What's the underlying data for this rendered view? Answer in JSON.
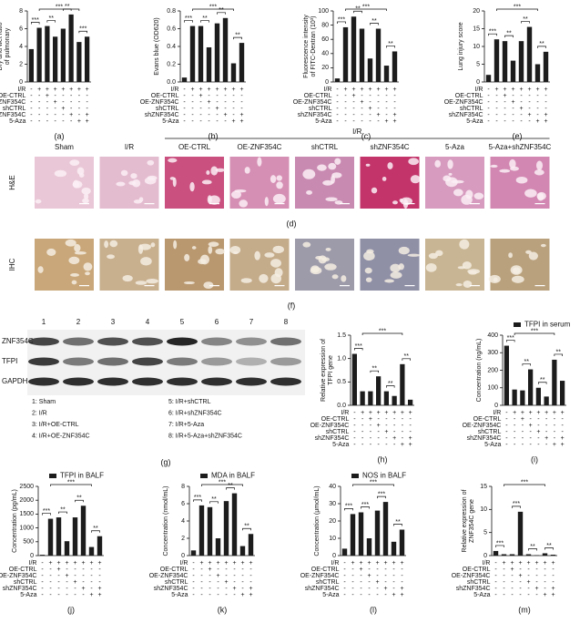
{
  "chart_data": [
    {
      "type": "bar",
      "panel_label": "(a)",
      "ylabel": [
        "Dry and wet ratio",
        "of pulmonary"
      ],
      "ylim": [
        0,
        8
      ],
      "yticks": [
        0,
        2,
        4,
        6,
        8
      ],
      "series": [
        {
          "color": "#1c1c1c",
          "values": [
            3.7,
            6.1,
            6.3,
            5.1,
            6.0,
            7.6,
            4.5,
            5.1
          ]
        }
      ],
      "annotations": [
        {
          "text": "***",
          "bars": [
            0,
            1
          ]
        },
        {
          "text": "**",
          "bars": [
            2,
            3
          ]
        },
        {
          "text": "**",
          "bars": [
            4,
            5
          ]
        },
        {
          "text": "***",
          "bars": [
            6,
            7
          ]
        },
        {
          "text": "***",
          "bars": [
            1,
            6
          ]
        }
      ]
    },
    {
      "type": "bar",
      "panel_label": "(b)",
      "ylabel": [
        "Evans blue (OD620)"
      ],
      "ylim": [
        0,
        0.8
      ],
      "yticks": [
        {
          "value": 0,
          "label": "0.0"
        },
        0.2,
        0.4,
        0.6,
        0.8
      ],
      "series": [
        {
          "color": "#1c1c1c",
          "values": [
            0.05,
            0.63,
            0.63,
            0.39,
            0.66,
            0.72,
            0.21,
            0.44
          ]
        }
      ],
      "annotations": [
        {
          "text": "***",
          "bars": [
            0,
            1
          ]
        },
        {
          "text": "**",
          "bars": [
            2,
            3
          ]
        },
        {
          "text": "**",
          "bars": [
            4,
            5
          ]
        },
        {
          "text": "**",
          "bars": [
            6,
            7
          ]
        },
        {
          "text": "***",
          "bars": [
            1,
            6
          ]
        }
      ]
    },
    {
      "type": "bar",
      "panel_label": "(c)",
      "ylabel": [
        "Fluorescence intensity",
        "of FITC-Dextran (10³)"
      ],
      "ylim": [
        0,
        100
      ],
      "yticks": [
        0,
        20,
        40,
        60,
        80,
        100
      ],
      "series": [
        {
          "color": "#1c1c1c",
          "values": [
            5,
            77,
            92,
            75,
            33,
            75,
            23,
            43
          ]
        }
      ],
      "annotations": [
        {
          "text": "***",
          "bars": [
            0,
            1
          ]
        },
        {
          "text": "**",
          "bars": [
            2,
            3
          ]
        },
        {
          "text": "**",
          "bars": [
            4,
            5
          ]
        },
        {
          "text": "**",
          "bars": [
            6,
            7
          ]
        },
        {
          "text": "***",
          "bars": [
            1,
            6
          ]
        }
      ]
    },
    {
      "type": "bar",
      "panel_label": "(e)",
      "ylabel": [
        "Lung injury score"
      ],
      "ylim": [
        0,
        20
      ],
      "yticks": [
        0,
        5,
        10,
        15,
        20
      ],
      "series": [
        {
          "color": "#1c1c1c",
          "values": [
            2,
            12,
            11.5,
            6,
            11.5,
            15.5,
            5,
            8.5
          ]
        }
      ],
      "annotations": [
        {
          "text": "***",
          "bars": [
            0,
            1
          ]
        },
        {
          "text": "**",
          "bars": [
            2,
            3
          ]
        },
        {
          "text": "**",
          "bars": [
            4,
            5
          ]
        },
        {
          "text": "**",
          "bars": [
            6,
            7
          ]
        },
        {
          "text": "***",
          "bars": [
            1,
            6
          ]
        }
      ]
    },
    {
      "type": "bar",
      "panel_label": "(h)",
      "ylabel": [
        "Relative expression of",
        "TFPI gene"
      ],
      "ylim": [
        0,
        1.5
      ],
      "yticks": [
        {
          "value": 0,
          "label": "0.0"
        },
        0.5,
        {
          "value": 1,
          "label": "1.0"
        },
        1.5
      ],
      "series": [
        {
          "color": "#1c1c1c",
          "values": [
            1.1,
            0.3,
            0.3,
            0.62,
            0.3,
            0.2,
            0.88,
            0.12
          ]
        }
      ],
      "annotations": [
        {
          "text": "***",
          "bars": [
            0,
            1
          ]
        },
        {
          "text": "**",
          "bars": [
            2,
            3
          ]
        },
        {
          "text": "**",
          "bars": [
            4,
            5
          ]
        },
        {
          "text": "**",
          "bars": [
            6,
            7
          ]
        },
        {
          "text": "***",
          "bars": [
            1,
            6
          ]
        }
      ]
    },
    {
      "type": "bar",
      "panel_label": "(i)",
      "ylabel": [
        "Concentration (ng/mL)"
      ],
      "ylim": [
        0,
        400
      ],
      "yticks": [
        0,
        100,
        200,
        300,
        400
      ],
      "series": [
        {
          "name": "TFPI in serum",
          "color": "#1c1c1c",
          "values": [
            340,
            90,
            85,
            205,
            100,
            50,
            260,
            140
          ]
        }
      ],
      "annotations": [
        {
          "text": "***",
          "bars": [
            0,
            1
          ]
        },
        {
          "text": "**",
          "bars": [
            2,
            3
          ]
        },
        {
          "text": "**",
          "bars": [
            4,
            5
          ]
        },
        {
          "text": "**",
          "bars": [
            6,
            7
          ]
        },
        {
          "text": "***",
          "bars": [
            1,
            6
          ]
        }
      ]
    },
    {
      "type": "bar",
      "panel_label": "(j)",
      "ylabel": [
        "Concentration (pg/mL)"
      ],
      "ylim": [
        0,
        2500
      ],
      "yticks": [
        0,
        500,
        1000,
        1500,
        2000,
        2500
      ],
      "series": [
        {
          "name": "TFPI in BALF",
          "color": "#1c1c1c",
          "values": [
            30,
            1330,
            1380,
            520,
            1380,
            1800,
            310,
            700
          ]
        }
      ],
      "annotations": [
        {
          "text": "***",
          "bars": [
            0,
            1
          ]
        },
        {
          "text": "**",
          "bars": [
            2,
            3
          ]
        },
        {
          "text": "**",
          "bars": [
            4,
            5
          ]
        },
        {
          "text": "**",
          "bars": [
            6,
            7
          ]
        },
        {
          "text": "***",
          "bars": [
            1,
            6
          ]
        }
      ]
    },
    {
      "type": "bar",
      "panel_label": "(k)",
      "ylabel": [
        "Concentration (nmol/mL)"
      ],
      "ylim": [
        0,
        8
      ],
      "yticks": [
        0,
        2,
        4,
        6,
        8
      ],
      "series": [
        {
          "name": "MDA in BALF",
          "color": "#1c1c1c",
          "values": [
            0.6,
            5.8,
            5.6,
            2.0,
            6.3,
            7.2,
            1.1,
            2.5
          ]
        }
      ],
      "annotations": [
        {
          "text": "***",
          "bars": [
            0,
            1
          ]
        },
        {
          "text": "**",
          "bars": [
            2,
            3
          ]
        },
        {
          "text": "**",
          "bars": [
            4,
            5
          ]
        },
        {
          "text": "**",
          "bars": [
            6,
            7
          ]
        },
        {
          "text": "***",
          "bars": [
            1,
            6
          ]
        }
      ]
    },
    {
      "type": "bar",
      "panel_label": "(l)",
      "ylabel": [
        "Concentration (μmol/mL)"
      ],
      "ylim": [
        0,
        40
      ],
      "yticks": [
        0,
        10,
        20,
        30,
        40
      ],
      "series": [
        {
          "name": "NOS in BALF",
          "color": "#1c1c1c",
          "values": [
            4,
            24,
            25,
            10,
            26,
            31,
            8,
            15
          ]
        }
      ],
      "annotations": [
        {
          "text": "***",
          "bars": [
            0,
            1
          ]
        },
        {
          "text": "***",
          "bars": [
            2,
            3
          ]
        },
        {
          "text": "***",
          "bars": [
            4,
            5
          ]
        },
        {
          "text": "**",
          "bars": [
            6,
            7
          ]
        },
        {
          "text": "***",
          "bars": [
            1,
            6
          ]
        }
      ]
    },
    {
      "type": "bar",
      "panel_label": "(m)",
      "ylabel": [
        "Relative expression of",
        "ZNF354C gene"
      ],
      "ylim": [
        0,
        15
      ],
      "yticks": [
        0,
        5,
        10,
        15
      ],
      "series": [
        {
          "color": "#1c1c1c",
          "values": [
            1.0,
            0.3,
            0.3,
            9.5,
            0.3,
            0.1,
            0.5,
            0.2
          ]
        }
      ],
      "annotations": [
        {
          "text": "***",
          "bars": [
            0,
            1
          ]
        },
        {
          "text": "***",
          "bars": [
            2,
            3
          ]
        },
        {
          "text": "**",
          "bars": [
            4,
            5
          ]
        },
        {
          "text": "**",
          "bars": [
            6,
            7
          ]
        },
        {
          "text": "***",
          "bars": [
            1,
            6
          ]
        }
      ]
    }
  ],
  "design": {
    "rows": [
      "I/R",
      "OE-CTRL",
      "OE-ZNF354C",
      "shCTRL",
      "shZNF354C",
      "5-Aza"
    ],
    "signs": [
      [
        "-",
        "+",
        "+",
        "+",
        "+",
        "+",
        "+",
        "+"
      ],
      [
        "-",
        "-",
        "+",
        "-",
        "-",
        "-",
        "-",
        "-"
      ],
      [
        "-",
        "-",
        "-",
        "+",
        "-",
        "-",
        "-",
        "-"
      ],
      [
        "-",
        "-",
        "-",
        "-",
        "+",
        "-",
        "-",
        "-"
      ],
      [
        "-",
        "-",
        "-",
        "-",
        "-",
        "+",
        "-",
        "+"
      ],
      [
        "-",
        "-",
        "-",
        "-",
        "-",
        "-",
        "+",
        "+"
      ]
    ]
  },
  "histology": {
    "group_label": "I/R",
    "columns": [
      "Sham",
      "I/R",
      "OE-CTRL",
      "OE-ZNF354C",
      "shCTRL",
      "shZNF354C",
      "5-Aza",
      "5-Aza+shZNF354C"
    ],
    "he": {
      "label": "H&E",
      "panel_label": "(d)"
    },
    "ihc": {
      "label": "IHC",
      "panel_label": "(f)"
    }
  },
  "western_blot": {
    "panel_label": "(g)",
    "lanes": [
      "1",
      "2",
      "3",
      "4",
      "5",
      "6",
      "7",
      "8"
    ],
    "rows": [
      "ZNF354C",
      "TFPI",
      "GAPDH"
    ],
    "legend": [
      "1: Sham",
      "2: I/R",
      "3: I/R+OE-CTRL",
      "4: I/R+OE-ZNF354C",
      "5: I/R+shCTRL",
      "6: I/R+shZNF354C",
      "7: I/R+5-Aza",
      "8: I/R+5-Aza+shZNF354C"
    ]
  }
}
